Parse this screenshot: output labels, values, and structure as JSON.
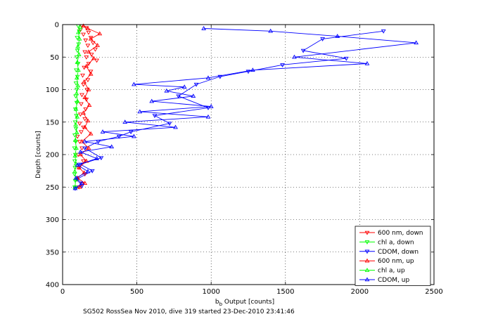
{
  "chart_data": {
    "type": "scatter",
    "xlabel_main": "b",
    "xlabel_sub": "b",
    "xlabel_rest": " Output [counts]",
    "ylabel": "Depth [counts]",
    "caption": "SG502 RossSea Nov 2010, dive 319 started 23-Dec-2010 23:41:46",
    "xlim": [
      0,
      2500
    ],
    "ylim": [
      0,
      400
    ],
    "y_reversed": true,
    "grid": true,
    "grid_style": "dotted",
    "legend_position": "bottom-right",
    "xticks": [
      "0",
      "500",
      "1000",
      "1500",
      "2000",
      "2500"
    ],
    "yticks": [
      "0",
      "50",
      "100",
      "150",
      "200",
      "250",
      "300",
      "350",
      "400"
    ],
    "series": [
      {
        "name": "600 nm, down",
        "color": "#ff0000",
        "marker": "triangle-down",
        "lines": false,
        "points": [
          [
            130,
            2
          ],
          [
            160,
            5
          ],
          [
            120,
            8
          ],
          [
            175,
            12
          ],
          [
            140,
            15
          ],
          [
            190,
            20
          ],
          [
            155,
            24
          ],
          [
            205,
            28
          ],
          [
            170,
            32
          ],
          [
            220,
            38
          ],
          [
            150,
            42
          ],
          [
            195,
            46
          ],
          [
            160,
            50
          ],
          [
            230,
            55
          ],
          [
            175,
            60
          ],
          [
            145,
            66
          ],
          [
            190,
            72
          ],
          [
            135,
            78
          ],
          [
            170,
            85
          ],
          [
            140,
            92
          ],
          [
            165,
            100
          ],
          [
            130,
            108
          ],
          [
            160,
            115
          ],
          [
            125,
            122
          ],
          [
            155,
            130
          ],
          [
            120,
            138
          ],
          [
            150,
            145
          ],
          [
            115,
            152
          ],
          [
            140,
            158
          ],
          [
            125,
            165
          ],
          [
            100,
            172
          ],
          [
            115,
            180
          ],
          [
            130,
            190
          ],
          [
            105,
            200
          ],
          [
            140,
            210
          ],
          [
            110,
            220
          ],
          [
            150,
            230
          ],
          [
            100,
            238
          ],
          [
            130,
            245
          ],
          [
            110,
            250
          ]
        ]
      },
      {
        "name": "chl a, down",
        "color": "#00ff00",
        "marker": "triangle-down",
        "lines": false,
        "points": [
          [
            105,
            2
          ],
          [
            112,
            10
          ],
          [
            98,
            20
          ],
          [
            108,
            30
          ],
          [
            100,
            40
          ],
          [
            95,
            50
          ],
          [
            104,
            60
          ],
          [
            92,
            70
          ],
          [
            100,
            80
          ],
          [
            90,
            90
          ],
          [
            96,
            100
          ],
          [
            88,
            110
          ],
          [
            95,
            120
          ],
          [
            86,
            130
          ],
          [
            93,
            140
          ],
          [
            85,
            150
          ],
          [
            90,
            160
          ],
          [
            82,
            170
          ],
          [
            88,
            180
          ],
          [
            80,
            190
          ],
          [
            86,
            200
          ],
          [
            82,
            210
          ],
          [
            84,
            220
          ],
          [
            80,
            230
          ],
          [
            85,
            240
          ],
          [
            82,
            250
          ]
        ]
      },
      {
        "name": "CDOM, down",
        "color": "#0000ff",
        "marker": "triangle-down",
        "lines": true,
        "points": [
          [
            2160,
            10
          ],
          [
            1750,
            22
          ],
          [
            1620,
            40
          ],
          [
            1910,
            52
          ],
          [
            1480,
            62
          ],
          [
            1250,
            72
          ],
          [
            1060,
            80
          ],
          [
            900,
            92
          ],
          [
            780,
            110
          ],
          [
            980,
            128
          ],
          [
            620,
            140
          ],
          [
            720,
            152
          ],
          [
            460,
            165
          ],
          [
            380,
            172
          ],
          [
            240,
            180
          ],
          [
            150,
            190
          ],
          [
            260,
            205
          ],
          [
            120,
            215
          ],
          [
            200,
            225
          ],
          [
            95,
            238
          ],
          [
            130,
            248
          ],
          [
            85,
            252
          ]
        ]
      },
      {
        "name": "600 nm, up",
        "color": "#ff0000",
        "marker": "triangle-up",
        "lines": true,
        "points": [
          [
            115,
            250
          ],
          [
            150,
            244
          ],
          [
            100,
            236
          ],
          [
            145,
            228
          ],
          [
            110,
            220
          ],
          [
            160,
            210
          ],
          [
            120,
            200
          ],
          [
            175,
            190
          ],
          [
            130,
            180
          ],
          [
            190,
            168
          ],
          [
            150,
            158
          ],
          [
            170,
            148
          ],
          [
            140,
            136
          ],
          [
            180,
            124
          ],
          [
            150,
            112
          ],
          [
            175,
            100
          ],
          [
            145,
            88
          ],
          [
            190,
            76
          ],
          [
            160,
            64
          ],
          [
            210,
            52
          ],
          [
            175,
            42
          ],
          [
            235,
            32
          ],
          [
            190,
            22
          ],
          [
            250,
            14
          ],
          [
            170,
            6
          ],
          [
            140,
            2
          ]
        ]
      },
      {
        "name": "chl a, up",
        "color": "#00ff00",
        "marker": "triangle-up",
        "lines": true,
        "points": [
          [
            84,
            250
          ],
          [
            88,
            238
          ],
          [
            82,
            226
          ],
          [
            90,
            214
          ],
          [
            84,
            202
          ],
          [
            92,
            190
          ],
          [
            86,
            178
          ],
          [
            95,
            166
          ],
          [
            88,
            154
          ],
          [
            98,
            142
          ],
          [
            90,
            130
          ],
          [
            100,
            118
          ],
          [
            94,
            106
          ],
          [
            103,
            94
          ],
          [
            96,
            82
          ],
          [
            106,
            70
          ],
          [
            99,
            58
          ],
          [
            110,
            46
          ],
          [
            102,
            34
          ],
          [
            114,
            22
          ],
          [
            106,
            12
          ],
          [
            118,
            4
          ]
        ]
      },
      {
        "name": "CDOM, up",
        "color": "#0000ff",
        "marker": "triangle-up",
        "lines": true,
        "points": [
          [
            85,
            252
          ],
          [
            130,
            244
          ],
          [
            90,
            236
          ],
          [
            170,
            226
          ],
          [
            100,
            216
          ],
          [
            230,
            206
          ],
          [
            120,
            196
          ],
          [
            330,
            188
          ],
          [
            150,
            180
          ],
          [
            480,
            172
          ],
          [
            270,
            165
          ],
          [
            760,
            158
          ],
          [
            420,
            150
          ],
          [
            980,
            142
          ],
          [
            520,
            134
          ],
          [
            1000,
            126
          ],
          [
            600,
            118
          ],
          [
            880,
            110
          ],
          [
            700,
            102
          ],
          [
            820,
            96
          ],
          [
            480,
            92
          ],
          [
            980,
            82
          ],
          [
            1280,
            70
          ],
          [
            2050,
            60
          ],
          [
            1560,
            50
          ],
          [
            2380,
            28
          ],
          [
            1850,
            18
          ],
          [
            1400,
            10
          ],
          [
            950,
            6
          ]
        ]
      }
    ]
  }
}
